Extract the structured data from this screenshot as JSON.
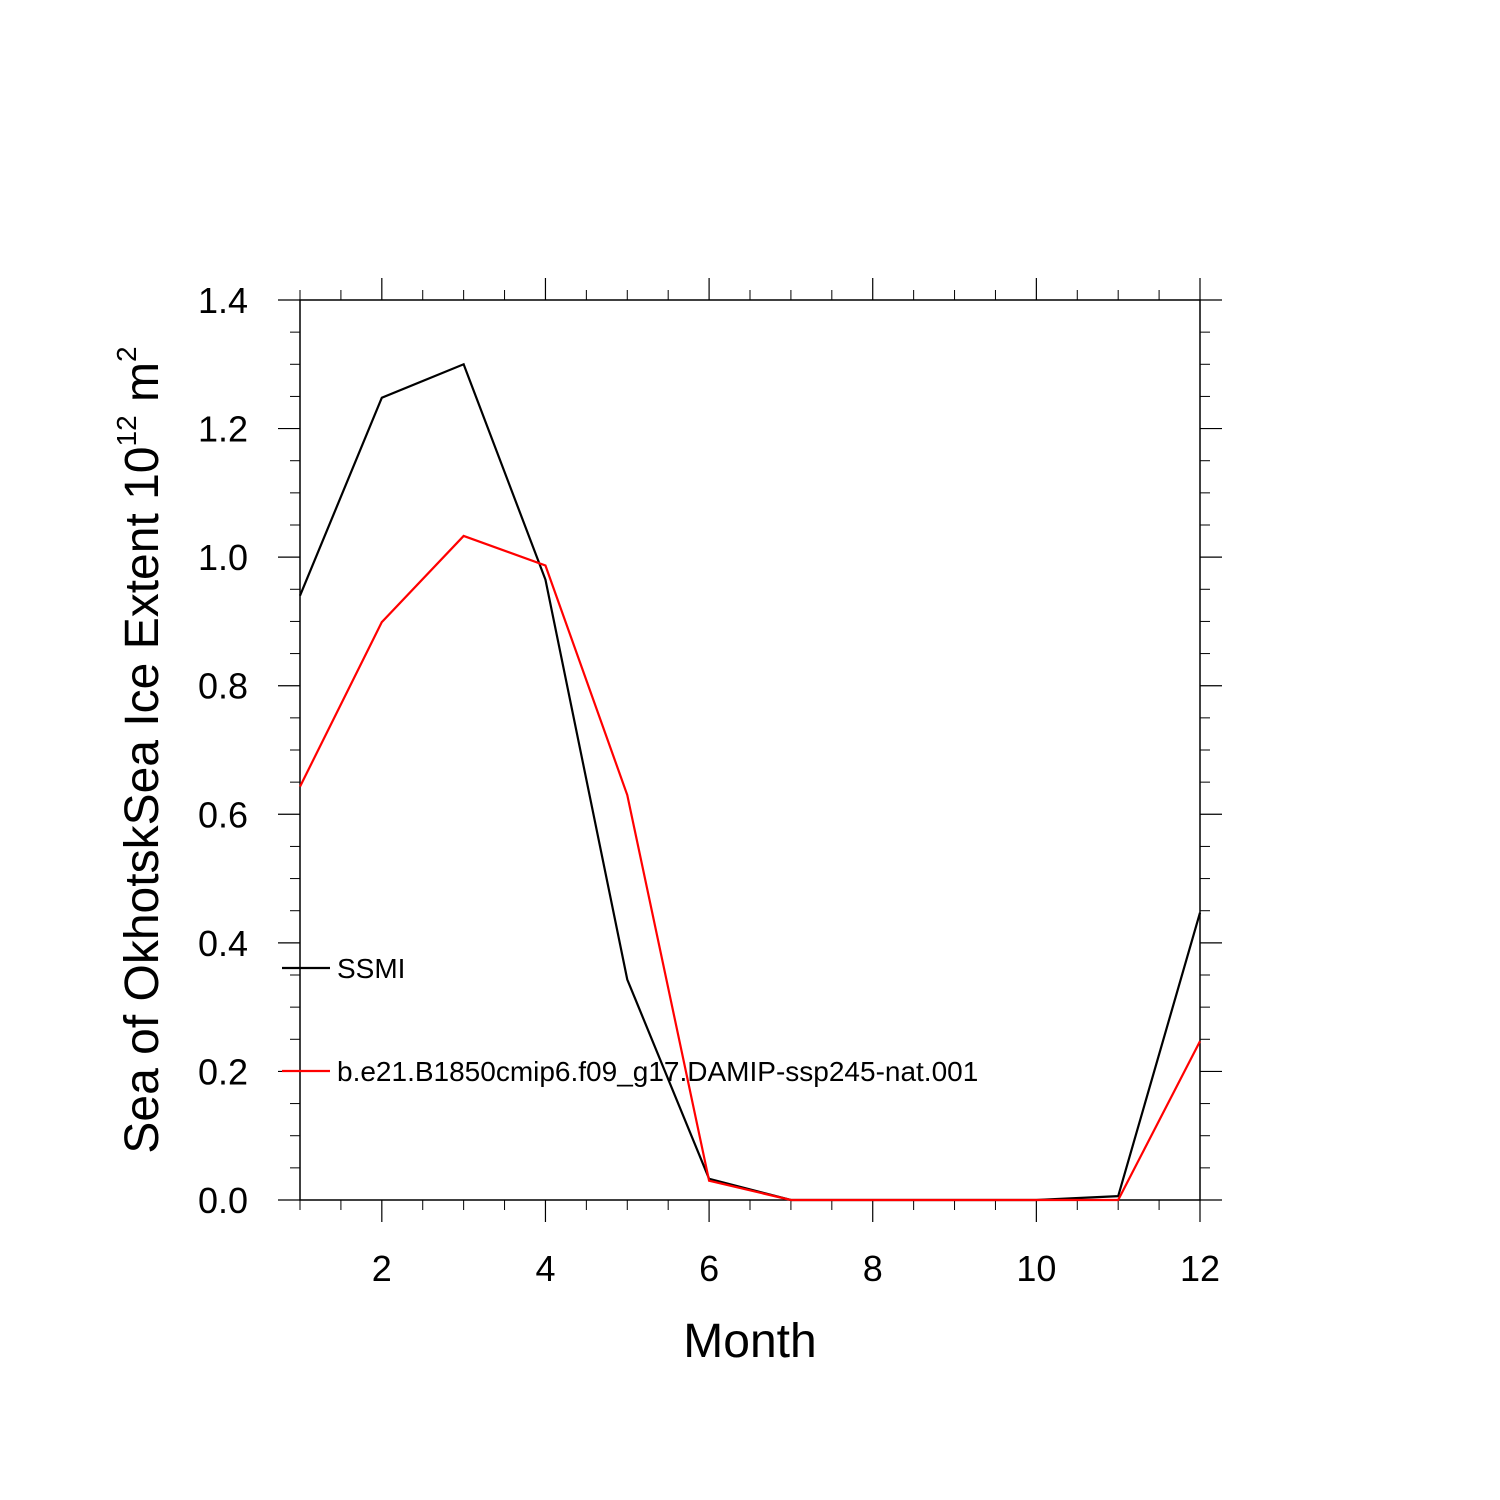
{
  "chart_data": {
    "type": "line",
    "xlabel": "Month",
    "ylabel": {
      "main": "Sea of OkhotskSea Ice Extent 10",
      "superscript1": "12",
      "unit": " m",
      "superscript2": "2"
    },
    "xlim": [
      1,
      12
    ],
    "ylim": [
      0,
      1.4
    ],
    "xticks": [
      2,
      4,
      6,
      8,
      10,
      12
    ],
    "xtick_labels": [
      "2",
      "4",
      "6",
      "8",
      "10",
      "12"
    ],
    "yticks": [
      0,
      0.2,
      0.4,
      0.6,
      0.8,
      1.0,
      1.2,
      1.4
    ],
    "ytick_labels": [
      "0.0",
      "0.2",
      "0.4",
      "0.6",
      "0.8",
      "1.0",
      "1.2",
      "1.4"
    ],
    "grid": false,
    "x": [
      1,
      2,
      3,
      4,
      5,
      6,
      7,
      8,
      9,
      10,
      11,
      12
    ],
    "series": [
      {
        "name": "SSMI",
        "color": "#000000",
        "values": [
          0.94,
          1.248,
          1.3,
          0.965,
          0.343,
          0.033,
          0.0,
          0.0,
          0.0,
          0.0,
          0.006,
          0.447
        ]
      },
      {
        "name": "b.e21.B1850cmip6.f09_g17.DAMIP-ssp245-nat.001",
        "color": "#ff0000",
        "values": [
          0.643,
          0.899,
          1.033,
          0.987,
          0.63,
          0.03,
          0.0,
          0.0,
          0.0,
          0.0,
          0.0,
          0.247
        ]
      }
    ]
  }
}
